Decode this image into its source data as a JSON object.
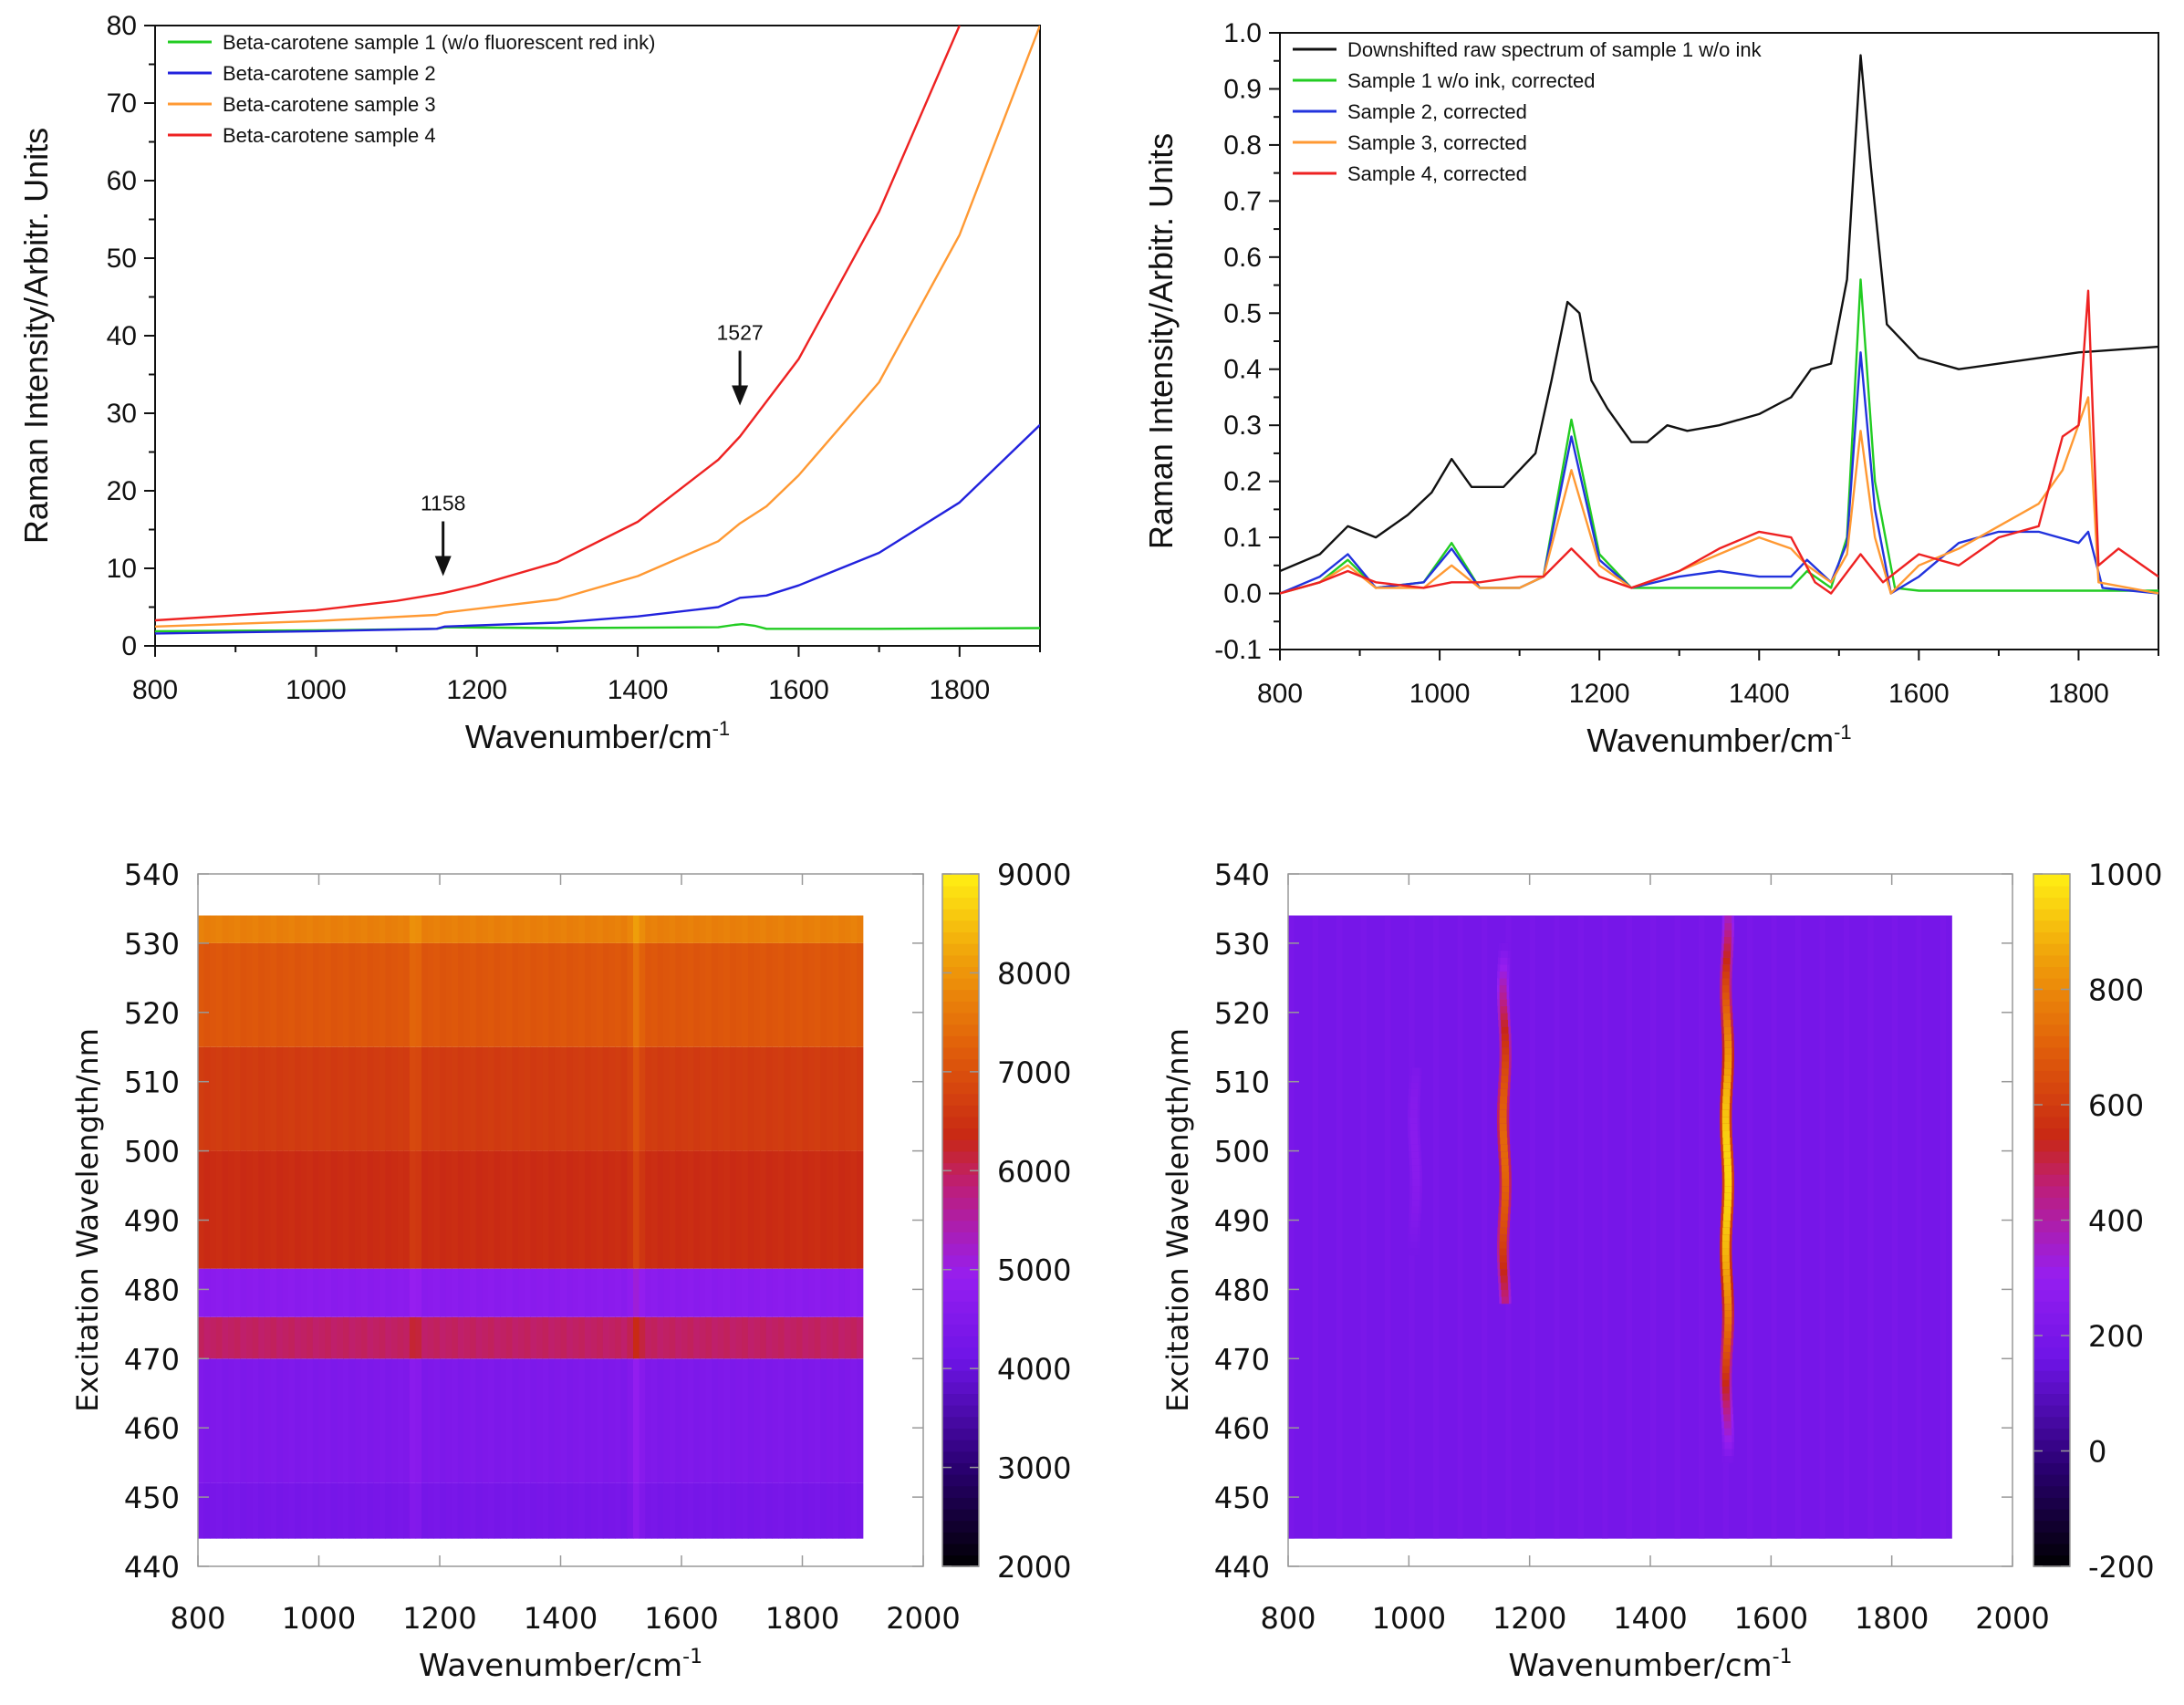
{
  "chart_data": [
    {
      "type": "line",
      "title": "",
      "xlabel": "Wavenumber/cm",
      "xlabel_sup": "-1",
      "ylabel": "Raman Intensity/Arbitr. Units",
      "xlim": [
        800,
        1900
      ],
      "ylim": [
        0,
        80
      ],
      "xticks": [
        "800",
        "1000",
        "1200",
        "1400",
        "1600",
        "1800"
      ],
      "yticks": [
        "0",
        "10",
        "20",
        "30",
        "40",
        "50",
        "60",
        "70",
        "80"
      ],
      "legend_position": "top-left",
      "series": [
        {
          "name": "Beta-carotene sample 1 (w/o fluorescent red ink)",
          "color": "#22cc22",
          "x": [
            800,
            1000,
            1150,
            1160,
            1300,
            1500,
            1520,
            1530,
            1545,
            1560,
            1700,
            1900
          ],
          "y": [
            1.9,
            2.0,
            2.2,
            2.4,
            2.3,
            2.4,
            2.7,
            2.8,
            2.6,
            2.2,
            2.2,
            2.3
          ]
        },
        {
          "name": "Beta-carotene sample 2",
          "color": "#2222dd",
          "x": [
            800,
            1000,
            1150,
            1160,
            1300,
            1400,
            1500,
            1527,
            1560,
            1600,
            1700,
            1800,
            1900
          ],
          "y": [
            1.6,
            1.9,
            2.2,
            2.5,
            3.0,
            3.8,
            5.0,
            6.2,
            6.5,
            7.8,
            12.0,
            18.5,
            28.5
          ]
        },
        {
          "name": "Beta-carotene sample 3",
          "color": "#ff9933",
          "x": [
            800,
            1000,
            1150,
            1160,
            1300,
            1400,
            1500,
            1527,
            1560,
            1600,
            1700,
            1800,
            1900
          ],
          "y": [
            2.5,
            3.2,
            4.0,
            4.3,
            6.0,
            9.0,
            13.5,
            15.8,
            18.0,
            22.0,
            34.0,
            53.0,
            80.0
          ]
        },
        {
          "name": "Beta-carotene sample 4",
          "color": "#ee2222",
          "x": [
            800,
            1000,
            1100,
            1158,
            1200,
            1300,
            1400,
            1500,
            1527,
            1600,
            1700,
            1800
          ],
          "y": [
            3.3,
            4.6,
            5.8,
            6.8,
            7.8,
            10.8,
            16.0,
            24.0,
            27.0,
            37.0,
            56.0,
            80.0
          ]
        }
      ],
      "annotations": [
        {
          "text": "1527",
          "x": 1527,
          "y": 31
        },
        {
          "text": "1158",
          "x": 1158,
          "y": 9
        }
      ]
    },
    {
      "type": "line",
      "title": "",
      "xlabel": "Wavenumber/cm",
      "xlabel_sup": "-1",
      "ylabel": "Raman Intensity/Arbitr. Units",
      "xlim": [
        800,
        1900
      ],
      "ylim": [
        -0.1,
        1.0
      ],
      "xticks": [
        "800",
        "1000",
        "1200",
        "1400",
        "1600",
        "1800"
      ],
      "yticks": [
        "-0.1",
        "0.0",
        "0.1",
        "0.2",
        "0.3",
        "0.4",
        "0.5",
        "0.6",
        "0.7",
        "0.8",
        "0.9",
        "1.0"
      ],
      "legend_position": "top-left",
      "series": [
        {
          "name": "Downshifted raw spectrum of sample 1 w/o ink",
          "color": "#111111",
          "x": [
            800,
            850,
            885,
            920,
            960,
            990,
            1015,
            1040,
            1080,
            1120,
            1140,
            1160,
            1175,
            1190,
            1210,
            1240,
            1260,
            1285,
            1310,
            1350,
            1400,
            1440,
            1465,
            1490,
            1510,
            1527,
            1540,
            1560,
            1600,
            1650,
            1700,
            1800,
            1900
          ],
          "y": [
            0.04,
            0.07,
            0.12,
            0.1,
            0.14,
            0.18,
            0.24,
            0.19,
            0.19,
            0.25,
            0.38,
            0.52,
            0.5,
            0.38,
            0.33,
            0.27,
            0.27,
            0.3,
            0.29,
            0.3,
            0.32,
            0.35,
            0.4,
            0.41,
            0.56,
            0.96,
            0.76,
            0.48,
            0.42,
            0.4,
            0.41,
            0.43,
            0.44
          ]
        },
        {
          "name": "Sample 1 w/o ink, corrected",
          "color": "#22cc22",
          "x": [
            800,
            850,
            885,
            920,
            980,
            1015,
            1050,
            1100,
            1130,
            1165,
            1200,
            1240,
            1300,
            1400,
            1440,
            1460,
            1490,
            1510,
            1527,
            1545,
            1570,
            1600,
            1900
          ],
          "y": [
            0.0,
            0.02,
            0.06,
            0.01,
            0.02,
            0.09,
            0.01,
            0.01,
            0.03,
            0.31,
            0.07,
            0.01,
            0.01,
            0.01,
            0.01,
            0.04,
            0.01,
            0.1,
            0.56,
            0.2,
            0.01,
            0.005,
            0.005
          ]
        },
        {
          "name": "Sample 2, corrected",
          "color": "#2233dd",
          "x": [
            800,
            850,
            885,
            920,
            980,
            1015,
            1050,
            1100,
            1130,
            1165,
            1200,
            1240,
            1300,
            1350,
            1400,
            1440,
            1460,
            1490,
            1510,
            1527,
            1545,
            1565,
            1600,
            1650,
            1700,
            1750,
            1800,
            1812,
            1830,
            1900
          ],
          "y": [
            0.0,
            0.03,
            0.07,
            0.01,
            0.02,
            0.08,
            0.01,
            0.01,
            0.03,
            0.28,
            0.06,
            0.01,
            0.03,
            0.04,
            0.03,
            0.03,
            0.06,
            0.02,
            0.09,
            0.43,
            0.15,
            0.0,
            0.03,
            0.09,
            0.11,
            0.11,
            0.09,
            0.11,
            0.01,
            0.0
          ]
        },
        {
          "name": "Sample 3, corrected",
          "color": "#ff9933",
          "x": [
            800,
            850,
            885,
            920,
            980,
            1015,
            1050,
            1100,
            1130,
            1165,
            1200,
            1240,
            1300,
            1350,
            1400,
            1440,
            1460,
            1490,
            1510,
            1527,
            1545,
            1565,
            1600,
            1650,
            1700,
            1750,
            1780,
            1812,
            1825,
            1900
          ],
          "y": [
            0.0,
            0.02,
            0.05,
            0.01,
            0.01,
            0.05,
            0.01,
            0.01,
            0.03,
            0.22,
            0.05,
            0.01,
            0.04,
            0.07,
            0.1,
            0.08,
            0.05,
            0.02,
            0.07,
            0.29,
            0.1,
            0.0,
            0.05,
            0.08,
            0.12,
            0.16,
            0.22,
            0.35,
            0.02,
            0.0
          ]
        },
        {
          "name": "Sample 4, corrected",
          "color": "#ee2222",
          "x": [
            800,
            850,
            885,
            920,
            980,
            1015,
            1050,
            1100,
            1130,
            1165,
            1200,
            1240,
            1300,
            1350,
            1400,
            1440,
            1470,
            1490,
            1527,
            1555,
            1600,
            1650,
            1700,
            1750,
            1780,
            1800,
            1812,
            1825,
            1850,
            1900
          ],
          "y": [
            0.0,
            0.02,
            0.04,
            0.02,
            0.01,
            0.02,
            0.02,
            0.03,
            0.03,
            0.08,
            0.03,
            0.01,
            0.04,
            0.08,
            0.11,
            0.1,
            0.02,
            0.0,
            0.07,
            0.02,
            0.07,
            0.05,
            0.1,
            0.12,
            0.28,
            0.3,
            0.54,
            0.05,
            0.08,
            0.03
          ]
        }
      ]
    },
    {
      "type": "heatmap",
      "title": "",
      "xlabel": "Wavenumber/cm",
      "xlabel_sup": "-1",
      "ylabel": "Excitation Wavelength/nm",
      "xlim": [
        800,
        2000
      ],
      "ylim": [
        440,
        540
      ],
      "data_extent": {
        "x": [
          800,
          1900
        ],
        "y": [
          444,
          534
        ]
      },
      "xticks": [
        "800",
        "1000",
        "1200",
        "1400",
        "1600",
        "1800",
        "2000"
      ],
      "yticks": [
        "440",
        "450",
        "460",
        "470",
        "480",
        "490",
        "500",
        "510",
        "520",
        "530",
        "540"
      ],
      "colorbar": {
        "range": [
          2000,
          9000
        ],
        "ticks": [
          "2000",
          "3000",
          "4000",
          "5000",
          "6000",
          "7000",
          "8000",
          "9000"
        ]
      },
      "row_bands": [
        {
          "y": [
            444,
            452
          ],
          "value": 4300
        },
        {
          "y": [
            452,
            470
          ],
          "value": 4450
        },
        {
          "y": [
            470,
            476
          ],
          "value": 5950
        },
        {
          "y": [
            476,
            483
          ],
          "value": 4700
        },
        {
          "y": [
            483,
            500
          ],
          "value": 6400
        },
        {
          "y": [
            500,
            515
          ],
          "value": 6650
        },
        {
          "y": [
            515,
            530
          ],
          "value": 7100
        },
        {
          "y": [
            530,
            534
          ],
          "value": 7700
        }
      ],
      "peak_lines": [
        {
          "x": 1158,
          "boost": 300
        },
        {
          "x": 1527,
          "boost": 450
        }
      ]
    },
    {
      "type": "heatmap",
      "title": "",
      "xlabel": "Wavenumber/cm",
      "xlabel_sup": "-1",
      "ylabel": "Excitation Wavelength/nm",
      "xlim": [
        800,
        2000
      ],
      "ylim": [
        440,
        540
      ],
      "data_extent": {
        "x": [
          800,
          1900
        ],
        "y": [
          444,
          534
        ]
      },
      "xticks": [
        "800",
        "1000",
        "1200",
        "1400",
        "1600",
        "1800",
        "2000"
      ],
      "yticks": [
        "440",
        "450",
        "460",
        "470",
        "480",
        "490",
        "500",
        "510",
        "520",
        "530",
        "540"
      ],
      "colorbar": {
        "range": [
          -200,
          1000
        ],
        "ticks": [
          "-200",
          "0",
          "200",
          "400",
          "600",
          "800",
          "1000"
        ]
      },
      "background_value": 190,
      "peaks": [
        {
          "x": 1158,
          "y": [
            478,
            530
          ],
          "center": 500,
          "max": 720
        },
        {
          "x": 1527,
          "y": [
            455,
            534
          ],
          "center": 497,
          "max": 950
        },
        {
          "x": 1010,
          "y": [
            485,
            512
          ],
          "center": 500,
          "max": 260
        }
      ]
    }
  ]
}
